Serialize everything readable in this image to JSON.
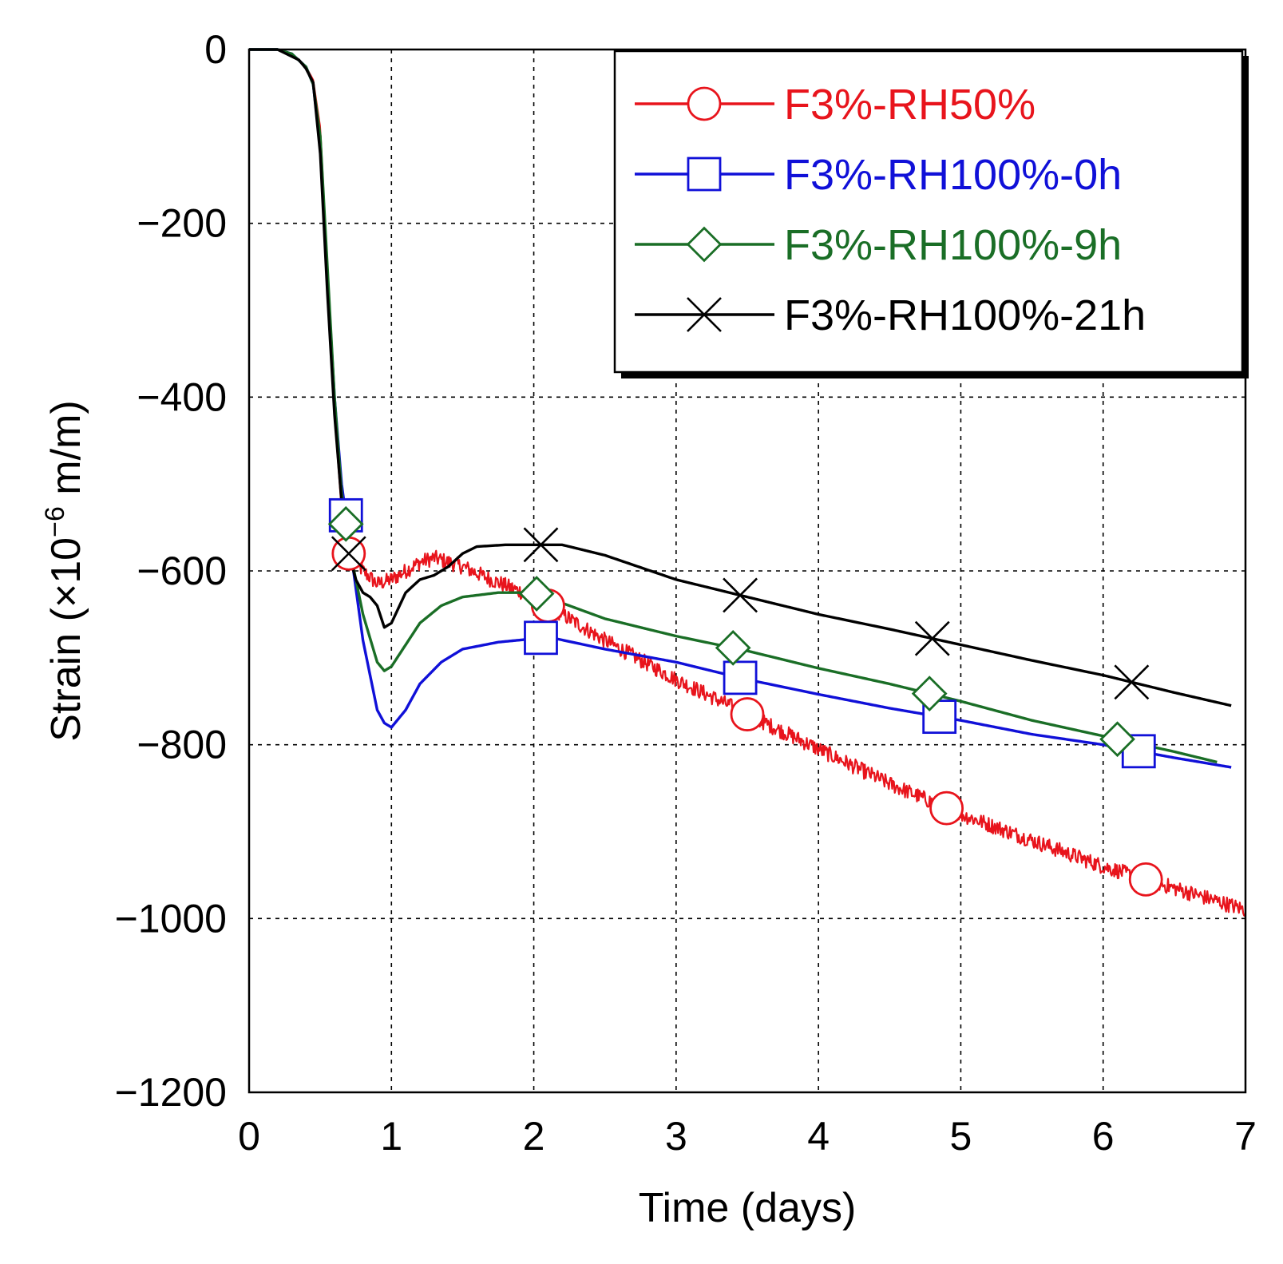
{
  "chart_data": {
    "type": "line",
    "title": "",
    "xlabel": "Time (days)",
    "ylabel": "Strain (×10",
    "ylabel_exponent": "−6",
    "ylabel_unit": " m/m)",
    "xlim": [
      0,
      7
    ],
    "ylim": [
      -1200,
      0
    ],
    "grid": true,
    "legend_position": "top-right",
    "x_ticks": [
      {
        "value": 0,
        "label": "0"
      },
      {
        "value": 1,
        "label": "1"
      },
      {
        "value": 2,
        "label": "2"
      },
      {
        "value": 3,
        "label": "3"
      },
      {
        "value": 4,
        "label": "4"
      },
      {
        "value": 5,
        "label": "5"
      },
      {
        "value": 6,
        "label": "6"
      },
      {
        "value": 7,
        "label": "7"
      }
    ],
    "y_ticks": [
      {
        "value": 0,
        "label": "0"
      },
      {
        "value": -200,
        "label": "−200"
      },
      {
        "value": -400,
        "label": "−400"
      },
      {
        "value": -600,
        "label": "−600"
      },
      {
        "value": -800,
        "label": "−800"
      },
      {
        "value": -1000,
        "label": "−1000"
      },
      {
        "value": -1200,
        "label": "−1200"
      }
    ],
    "series": [
      {
        "name": "F3%-RH50%",
        "color": "#e8141c",
        "marker": "circle",
        "noise": 9,
        "points": [
          [
            0,
            0
          ],
          [
            0.2,
            0
          ],
          [
            0.3,
            -5
          ],
          [
            0.4,
            -20
          ],
          [
            0.45,
            -35
          ],
          [
            0.5,
            -90
          ],
          [
            0.55,
            -250
          ],
          [
            0.6,
            -420
          ],
          [
            0.65,
            -530
          ],
          [
            0.7,
            -580
          ],
          [
            0.8,
            -600
          ],
          [
            0.9,
            -615
          ],
          [
            1.0,
            -610
          ],
          [
            1.1,
            -600
          ],
          [
            1.2,
            -590
          ],
          [
            1.3,
            -585
          ],
          [
            1.4,
            -590
          ],
          [
            1.5,
            -595
          ],
          [
            1.7,
            -610
          ],
          [
            2.0,
            -630
          ],
          [
            2.5,
            -680
          ],
          [
            3.0,
            -725
          ],
          [
            3.5,
            -765
          ],
          [
            4.0,
            -805
          ],
          [
            4.5,
            -845
          ],
          [
            5.0,
            -880
          ],
          [
            5.5,
            -910
          ],
          [
            6.0,
            -940
          ],
          [
            6.5,
            -965
          ],
          [
            7.0,
            -990
          ]
        ],
        "markers_x": [
          0.7,
          2.1,
          3.5,
          4.9,
          6.3
        ]
      },
      {
        "name": "F3%-RH100%-0h",
        "color": "#1010d8",
        "marker": "square",
        "noise": 0,
        "points": [
          [
            0,
            0
          ],
          [
            0.2,
            0
          ],
          [
            0.3,
            -5
          ],
          [
            0.4,
            -20
          ],
          [
            0.45,
            -40
          ],
          [
            0.5,
            -110
          ],
          [
            0.55,
            -260
          ],
          [
            0.6,
            -400
          ],
          [
            0.65,
            -500
          ],
          [
            0.7,
            -560
          ],
          [
            0.8,
            -680
          ],
          [
            0.9,
            -760
          ],
          [
            0.95,
            -775
          ],
          [
            1.0,
            -780
          ],
          [
            1.1,
            -760
          ],
          [
            1.2,
            -730
          ],
          [
            1.35,
            -705
          ],
          [
            1.5,
            -690
          ],
          [
            1.75,
            -682
          ],
          [
            2.0,
            -678
          ],
          [
            2.1,
            -676
          ],
          [
            2.5,
            -690
          ],
          [
            3.0,
            -705
          ],
          [
            3.5,
            -725
          ],
          [
            4.0,
            -742
          ],
          [
            4.5,
            -758
          ],
          [
            5.0,
            -772
          ],
          [
            5.5,
            -788
          ],
          [
            6.0,
            -800
          ],
          [
            6.5,
            -815
          ],
          [
            6.9,
            -826
          ]
        ],
        "markers_x": [
          0.68,
          2.05,
          3.45,
          4.85,
          6.25
        ]
      },
      {
        "name": "F3%-RH100%-9h",
        "color": "#1a6e26",
        "marker": "diamond",
        "noise": 0,
        "points": [
          [
            0,
            0
          ],
          [
            0.2,
            0
          ],
          [
            0.3,
            -5
          ],
          [
            0.4,
            -20
          ],
          [
            0.45,
            -40
          ],
          [
            0.5,
            -100
          ],
          [
            0.55,
            -250
          ],
          [
            0.6,
            -400
          ],
          [
            0.65,
            -510
          ],
          [
            0.7,
            -570
          ],
          [
            0.8,
            -650
          ],
          [
            0.9,
            -705
          ],
          [
            0.95,
            -715
          ],
          [
            1.0,
            -710
          ],
          [
            1.1,
            -685
          ],
          [
            1.2,
            -660
          ],
          [
            1.35,
            -640
          ],
          [
            1.5,
            -630
          ],
          [
            1.75,
            -625
          ],
          [
            2.0,
            -625
          ],
          [
            2.5,
            -655
          ],
          [
            3.0,
            -675
          ],
          [
            3.5,
            -692
          ],
          [
            4.0,
            -712
          ],
          [
            4.5,
            -730
          ],
          [
            5.0,
            -750
          ],
          [
            5.5,
            -772
          ],
          [
            6.0,
            -790
          ],
          [
            6.5,
            -808
          ],
          [
            6.8,
            -820
          ]
        ],
        "markers_x": [
          0.68,
          2.02,
          3.4,
          4.78,
          6.1
        ]
      },
      {
        "name": "F3%-RH100%-21h",
        "color": "#000000",
        "marker": "x",
        "noise": 0,
        "points": [
          [
            0,
            0
          ],
          [
            0.2,
            0
          ],
          [
            0.3,
            -8
          ],
          [
            0.35,
            -12
          ],
          [
            0.4,
            -22
          ],
          [
            0.45,
            -38
          ],
          [
            0.5,
            -120
          ],
          [
            0.55,
            -280
          ],
          [
            0.6,
            -420
          ],
          [
            0.65,
            -520
          ],
          [
            0.7,
            -580
          ],
          [
            0.75,
            -610
          ],
          [
            0.8,
            -625
          ],
          [
            0.85,
            -630
          ],
          [
            0.9,
            -640
          ],
          [
            0.95,
            -665
          ],
          [
            1.0,
            -660
          ],
          [
            1.1,
            -625
          ],
          [
            1.2,
            -610
          ],
          [
            1.3,
            -605
          ],
          [
            1.4,
            -595
          ],
          [
            1.5,
            -580
          ],
          [
            1.6,
            -572
          ],
          [
            1.8,
            -570
          ],
          [
            2.0,
            -570
          ],
          [
            2.2,
            -570
          ],
          [
            2.5,
            -582
          ],
          [
            3.0,
            -610
          ],
          [
            3.5,
            -630
          ],
          [
            4.0,
            -650
          ],
          [
            4.5,
            -667
          ],
          [
            5.0,
            -685
          ],
          [
            5.5,
            -703
          ],
          [
            6.0,
            -720
          ],
          [
            6.5,
            -740
          ],
          [
            6.9,
            -755
          ]
        ],
        "markers_x": [
          0.7,
          2.05,
          3.45,
          4.8,
          6.2
        ]
      }
    ]
  }
}
